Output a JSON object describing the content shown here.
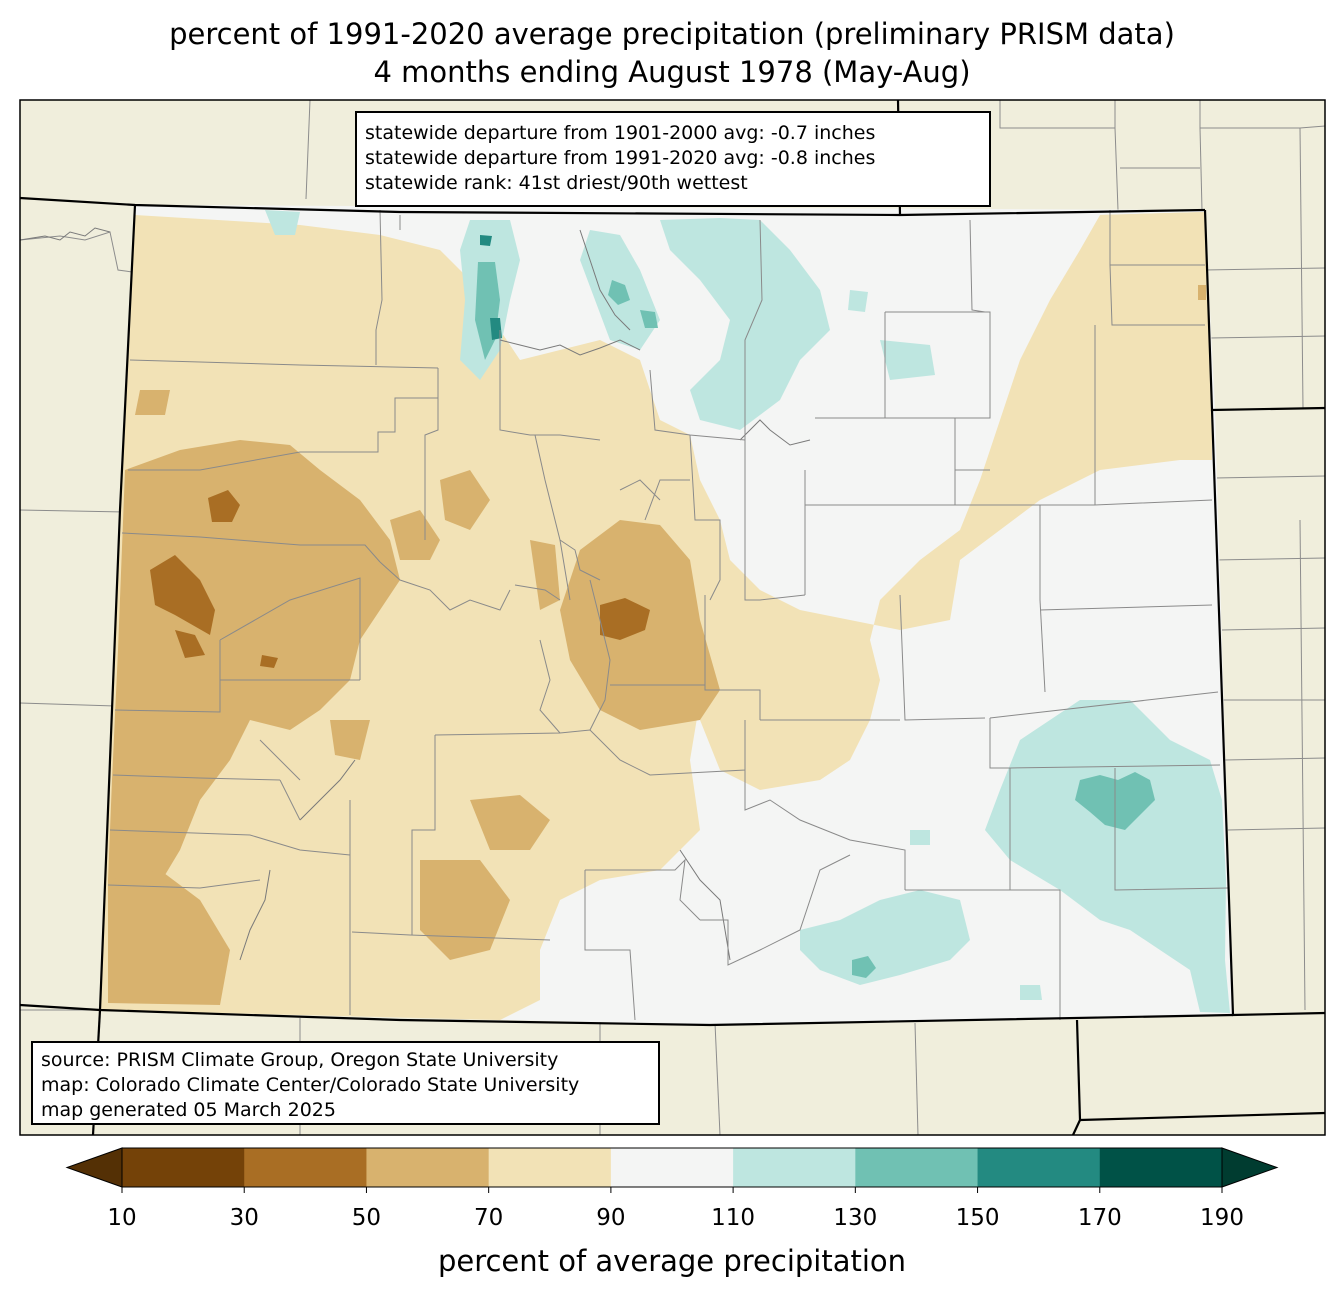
{
  "title": {
    "line1": "percent of 1991-2020 average precipitation (preliminary PRISM data)",
    "line2": "4 months ending August 1978 (May-Aug)"
  },
  "stats_box": {
    "lines": [
      "statewide departure from 1901-2000 avg: -0.7 inches",
      "statewide departure from 1991-2020 avg: -0.8 inches",
      "statewide rank: 41st driest/90th wettest"
    ]
  },
  "source_box": {
    "lines": [
      "source: PRISM Climate Group, Oregon State University",
      "map: Colorado Climate Center/Colorado State University",
      "map generated 05 March 2025"
    ]
  },
  "colorbar": {
    "label": "percent of average precipitation",
    "ticks": [
      "10",
      "30",
      "50",
      "70",
      "90",
      "110",
      "130",
      "150",
      "170",
      "190"
    ],
    "under_color": "#543005",
    "over_color": "#003c30",
    "colors": [
      "#744208",
      "#a96e24",
      "#d8b26e",
      "#f2e2b6",
      "#f4f5f4",
      "#bee6e0",
      "#70c1b3",
      "#238a81",
      "#005247"
    ]
  },
  "map_colors": {
    "background": "#f0eedc",
    "water_lines": "#808080",
    "state_border": "#000000"
  }
}
